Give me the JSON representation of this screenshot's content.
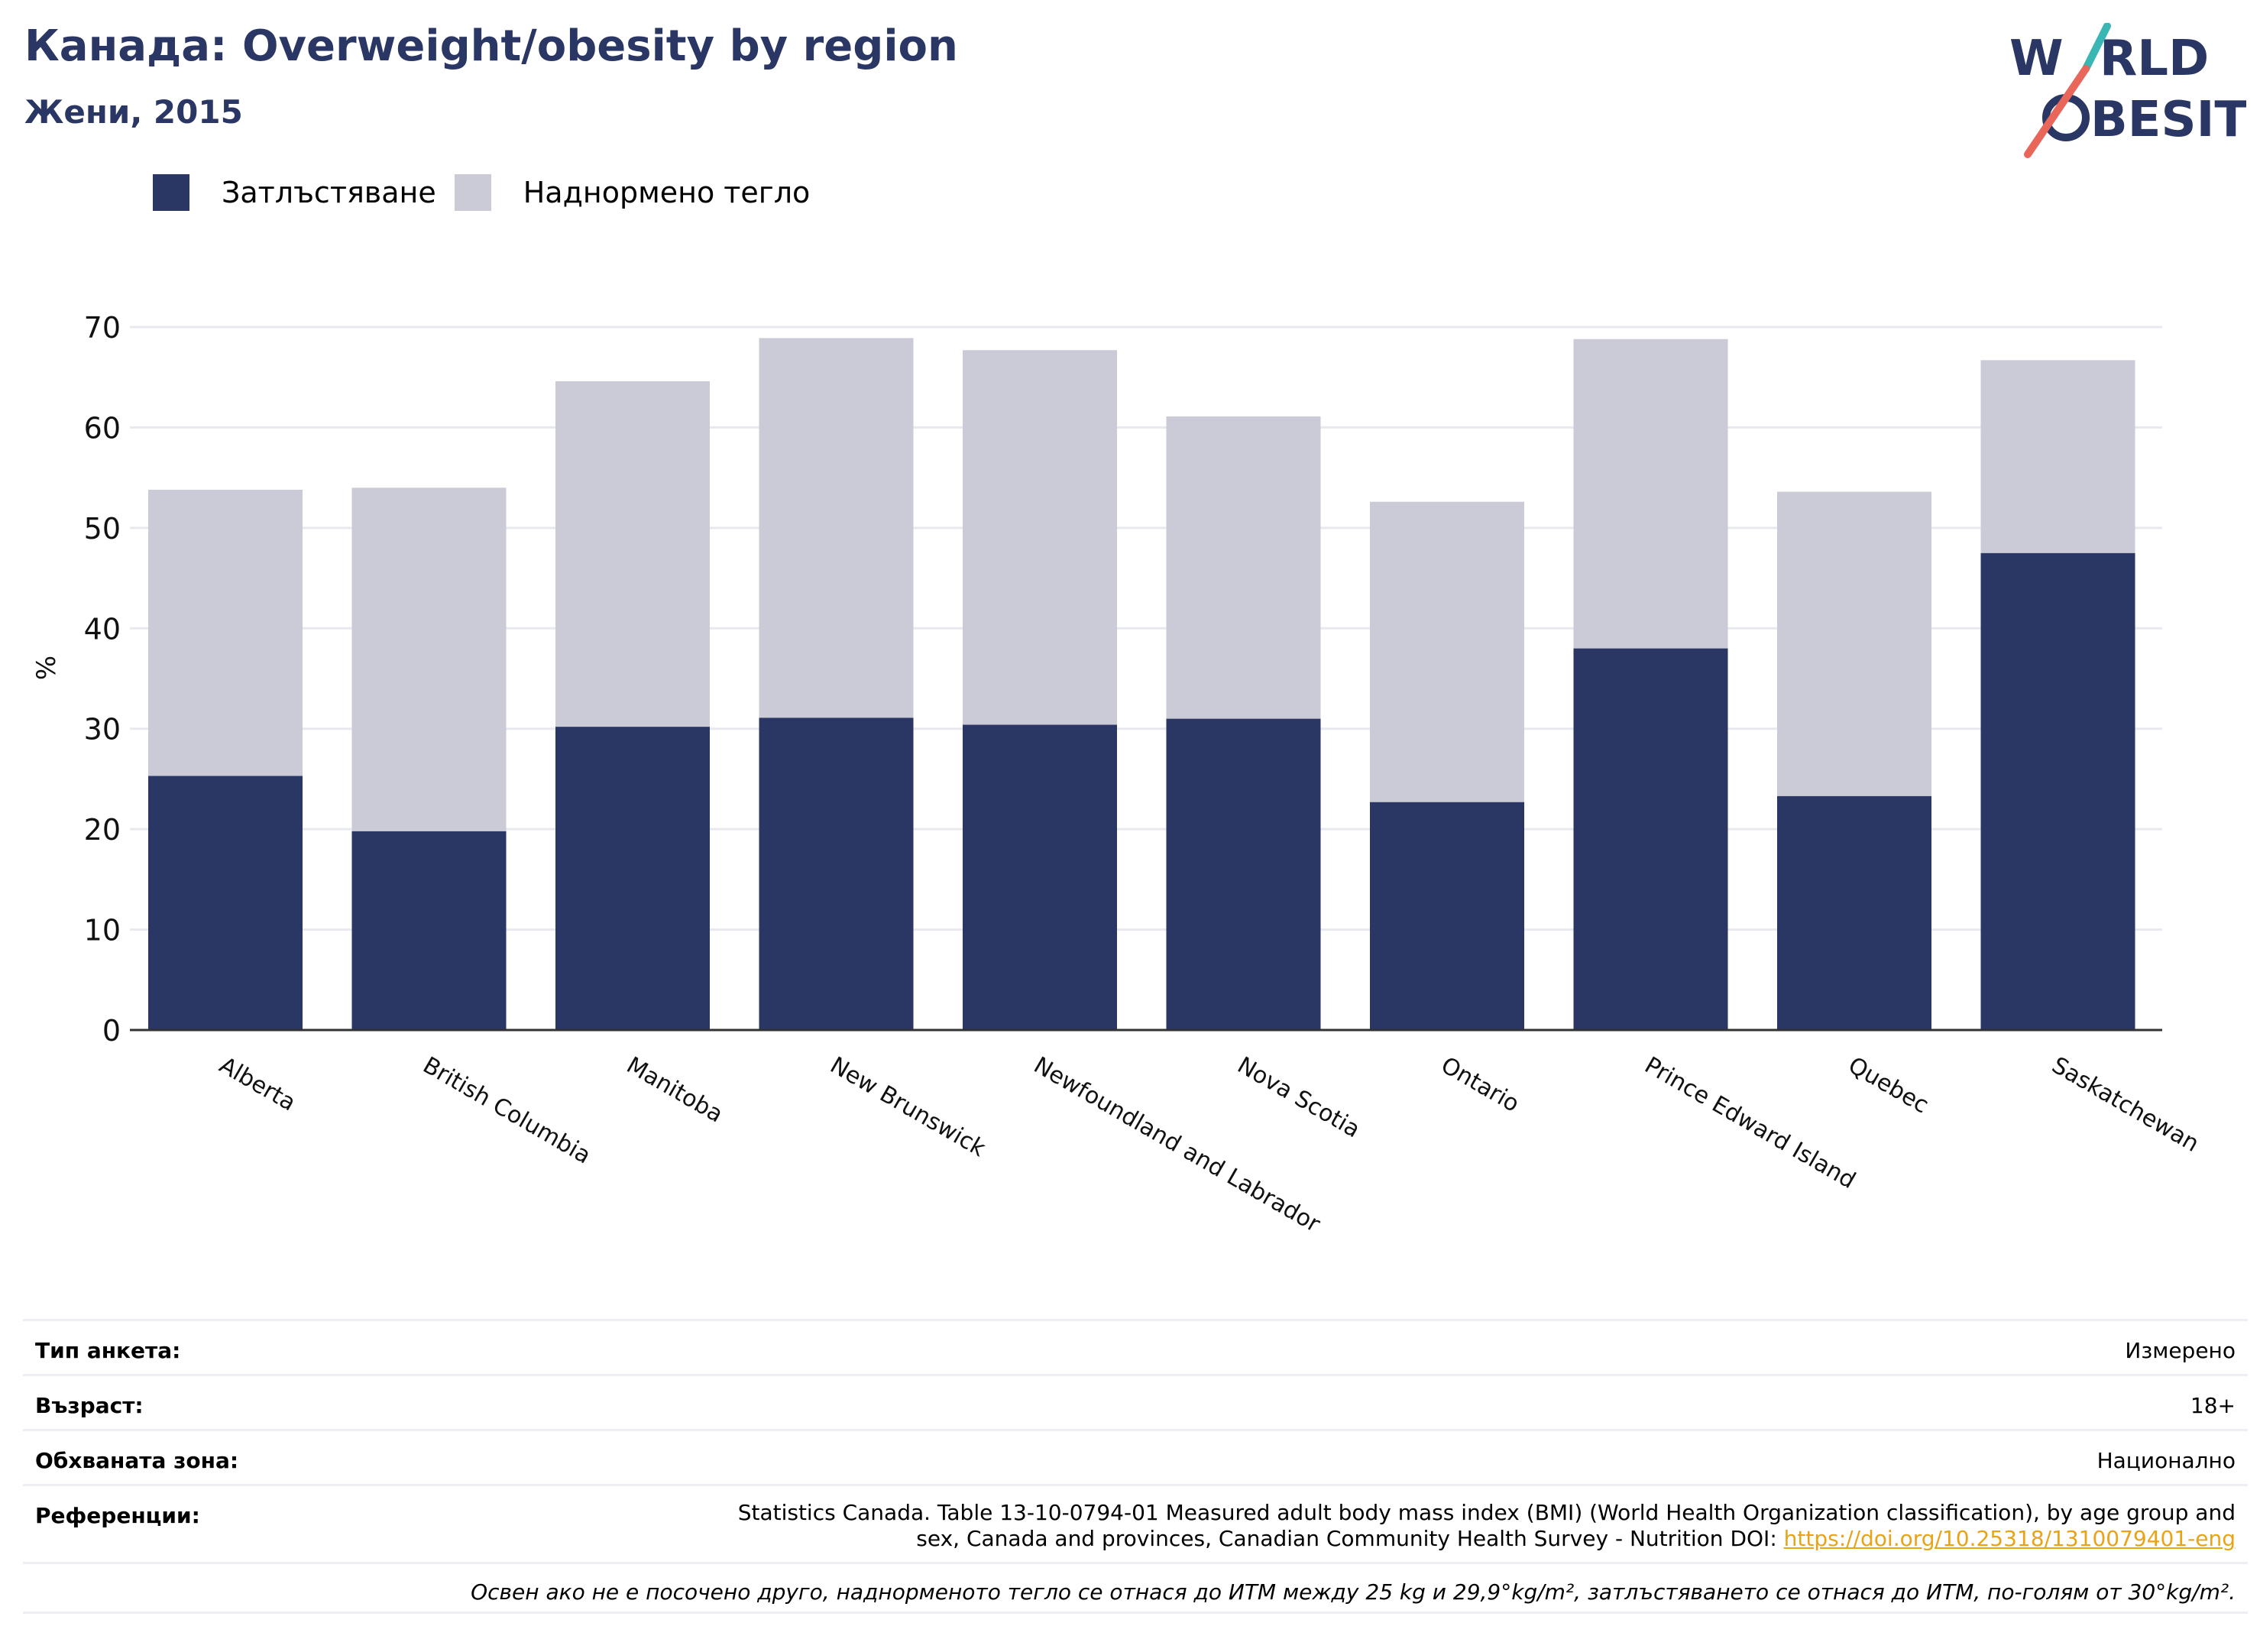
{
  "header": {
    "title": "Канада: Overweight/obesity by region",
    "subtitle": "Жени, 2015",
    "logo_top": "W",
    "logo_top_rest": "RLD",
    "logo_bottom": "BESITY"
  },
  "legend": [
    {
      "label": "Затлъстяване",
      "color": "#2a3663"
    },
    {
      "label": "Наднормено тегло",
      "color": "#cacbd7"
    }
  ],
  "chart_data": {
    "type": "bar",
    "stacked": true,
    "ylabel": "%",
    "ylim": [
      0,
      70
    ],
    "yticks": [
      0,
      10,
      20,
      30,
      40,
      50,
      60,
      70
    ],
    "grid": true,
    "legend_position": "top-left",
    "categories": [
      "Alberta",
      "British Columbia",
      "Manitoba",
      "New Brunswick",
      "Newfoundland and Labrador",
      "Nova Scotia",
      "Ontario",
      "Prince Edward Island",
      "Quebec",
      "Saskatchewan"
    ],
    "series": [
      {
        "name": "Затлъстяване",
        "color": "#2a3663",
        "values": [
          25.3,
          19.8,
          30.2,
          31.1,
          30.4,
          31.0,
          22.7,
          38.0,
          23.3,
          47.5
        ]
      },
      {
        "name": "Наднормено тегло",
        "color": "#cacbd7",
        "values": [
          28.5,
          34.2,
          34.4,
          37.8,
          37.3,
          30.1,
          29.9,
          30.8,
          30.3,
          19.2
        ]
      }
    ]
  },
  "meta": {
    "survey_label": "Тип анкета:",
    "survey_value": "Измерено",
    "age_label": "Възраст:",
    "age_value": "18+",
    "area_label": "Обхваната зона:",
    "area_value": "Национално",
    "ref_label": "Референции:",
    "ref_line1": "Statistics Canada. Table 13-10-0794-01 Measured adult body mass index (BMI) (World Health Organization classification), by age group and",
    "ref_line2": "sex, Canada and provinces, Canadian Community Health Survey - Nutrition DOI: ",
    "ref_doi": "https://doi.org/10.25318/1310079401-eng",
    "note": "Освен ако не е посочено друго, наднорменото тегло се отнася до ИТМ между 25 kg и 29,9°kg/m², затлъстяването се отнася до ИТМ, по-голям от 30°kg/m²."
  },
  "colors": {
    "obesity": "#2a3663",
    "overweight": "#cacbd7",
    "logo_navy": "#2a3663",
    "logo_teal": "#3ab7b4",
    "logo_red": "#e8665a"
  }
}
